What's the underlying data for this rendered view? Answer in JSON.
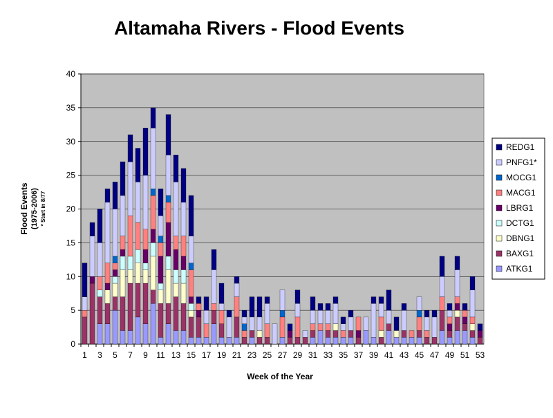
{
  "chart_data": {
    "type": "stacked_bar",
    "title": "Altamaha Rivers - Flood Events",
    "x_label": "Week of the Year",
    "y_label": "Flood Events",
    "y_label_sub": "(1975-2006)",
    "y_label_note": "* Start in 8/77",
    "categories": [
      1,
      null,
      3,
      null,
      5,
      null,
      7,
      null,
      9,
      null,
      11,
      null,
      13,
      null,
      15,
      null,
      17,
      null,
      19,
      null,
      21,
      null,
      23,
      null,
      25,
      null,
      27,
      null,
      29,
      null,
      31,
      null,
      33,
      null,
      35,
      null,
      37,
      null,
      39,
      null,
      41,
      null,
      43,
      null,
      45,
      null,
      47,
      null,
      49,
      null,
      51,
      null,
      53
    ],
    "ylim": [
      0,
      40
    ],
    "yticks": [
      0,
      5,
      10,
      15,
      20,
      25,
      30,
      35,
      40
    ],
    "grid": true,
    "legend": "right",
    "series": [
      {
        "name": "ATKG1",
        "color": "#9999ff",
        "values": [
          0,
          0,
          3,
          3,
          5,
          2,
          2,
          4,
          3,
          6,
          1,
          3,
          2,
          2,
          1,
          1,
          1,
          3,
          1,
          1,
          1,
          0,
          1,
          0,
          0,
          0,
          1,
          0,
          0,
          0,
          1,
          2,
          1,
          1,
          1,
          1,
          0,
          2,
          1,
          0,
          2,
          1,
          1,
          1,
          1,
          0,
          0,
          2,
          1,
          2,
          2,
          1,
          0
        ]
      },
      {
        "name": "BAXG1",
        "color": "#993366",
        "values": [
          4,
          9,
          4,
          3,
          2,
          5,
          7,
          5,
          6,
          2,
          5,
          3,
          5,
          4,
          3,
          3,
          0,
          2,
          2,
          0,
          3,
          1,
          1,
          1,
          1,
          0,
          0,
          1,
          1,
          1,
          1,
          0,
          1,
          1,
          0,
          1,
          1,
          0,
          0,
          1,
          1,
          0,
          1,
          0,
          1,
          1,
          1,
          3,
          1,
          2,
          1,
          1,
          1
        ]
      },
      {
        "name": "DBNG1",
        "color": "#ffffcc",
        "values": [
          0,
          0,
          0,
          2,
          2,
          4,
          2,
          3,
          2,
          5,
          2,
          5,
          2,
          3,
          1,
          0,
          0,
          0,
          0,
          0,
          0,
          0,
          0,
          1,
          0,
          0,
          0,
          0,
          0,
          0,
          0,
          0,
          0,
          1,
          0,
          0,
          0,
          0,
          0,
          1,
          0,
          1,
          0,
          0,
          0,
          0,
          0,
          0,
          0,
          1,
          0,
          1,
          0
        ]
      },
      {
        "name": "DCTG1",
        "color": "#ccffff",
        "values": [
          0,
          0,
          1,
          0,
          1,
          2,
          2,
          2,
          1,
          2,
          1,
          2,
          2,
          2,
          1,
          0,
          0,
          0,
          0,
          0,
          0,
          0,
          0,
          0,
          0,
          0,
          0,
          0,
          0,
          0,
          0,
          0,
          0,
          0,
          0,
          0,
          0,
          0,
          0,
          0,
          0,
          0,
          0,
          0,
          0,
          0,
          0,
          0,
          0,
          0,
          0,
          0,
          0
        ]
      },
      {
        "name": "LBRG1",
        "color": "#660066",
        "values": [
          0,
          1,
          0,
          1,
          1,
          1,
          0,
          0,
          2,
          2,
          4,
          5,
          3,
          2,
          1,
          1,
          0,
          0,
          0,
          0,
          0,
          0,
          0,
          0,
          0,
          0,
          0,
          1,
          0,
          0,
          0,
          0,
          0,
          0,
          0,
          0,
          1,
          0,
          0,
          0,
          0,
          0,
          0,
          0,
          0,
          0,
          0,
          0,
          1,
          1,
          1,
          0,
          1
        ]
      },
      {
        "name": "MACG1",
        "color": "#ff8080",
        "values": [
          1,
          0,
          2,
          3,
          1,
          2,
          6,
          4,
          3,
          5,
          2,
          3,
          2,
          3,
          4,
          1,
          2,
          1,
          2,
          0,
          3,
          1,
          0,
          0,
          2,
          0,
          3,
          0,
          3,
          0,
          1,
          1,
          1,
          0,
          1,
          0,
          2,
          0,
          0,
          2,
          0,
          0,
          0,
          1,
          2,
          1,
          0,
          2,
          1,
          1,
          1,
          1,
          0
        ]
      },
      {
        "name": "MOCG1",
        "color": "#0066cc",
        "values": [
          0,
          0,
          0,
          0,
          1,
          0,
          0,
          0,
          0,
          1,
          1,
          1,
          0,
          0,
          1,
          0,
          0,
          0,
          0,
          0,
          0,
          1,
          0,
          0,
          0,
          0,
          1,
          0,
          0,
          0,
          0,
          0,
          0,
          0,
          0,
          0,
          0,
          0,
          0,
          0,
          0,
          0,
          0,
          0,
          1,
          0,
          0,
          0,
          0,
          0,
          0,
          0,
          0
        ]
      },
      {
        "name": "PNFG1*",
        "color": "#ccccff",
        "values": [
          2,
          6,
          5,
          9,
          7,
          6,
          8,
          6,
          8,
          9,
          3,
          6,
          8,
          5,
          4,
          0,
          2,
          5,
          1,
          3,
          2,
          1,
          2,
          2,
          3,
          3,
          3,
          0,
          2,
          1,
          2,
          2,
          2,
          3,
          1,
          2,
          0,
          2,
          5,
          2,
          2,
          0,
          3,
          0,
          2,
          2,
          3,
          3,
          1,
          4,
          0,
          4,
          0
        ]
      },
      {
        "name": "REDG1",
        "color": "#000080",
        "values": [
          5,
          2,
          5,
          2,
          4,
          5,
          4,
          5,
          7,
          3,
          4,
          6,
          4,
          5,
          6,
          1,
          2,
          3,
          3,
          1,
          1,
          1,
          3,
          3,
          1,
          0,
          0,
          1,
          2,
          0,
          2,
          1,
          1,
          1,
          1,
          1,
          0,
          0,
          1,
          1,
          3,
          2,
          1,
          0,
          0,
          1,
          1,
          3,
          1,
          2,
          1,
          2,
          1
        ]
      }
    ]
  }
}
